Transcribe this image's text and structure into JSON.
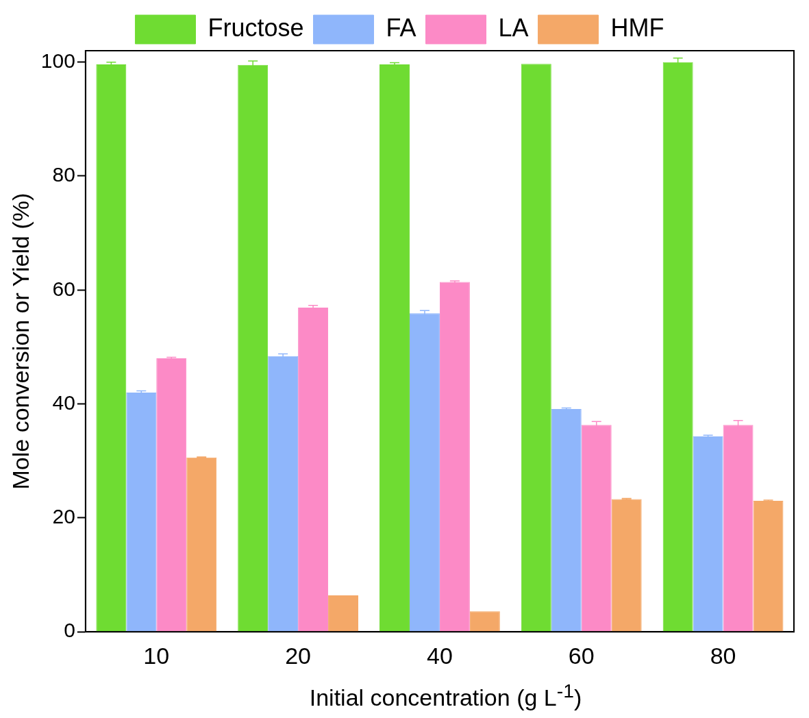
{
  "chart_data": {
    "type": "bar",
    "xlabel": "Initial concentration (g L$^{-1}$)",
    "ylabel": "Mole conversion or Yield (%)",
    "categories": [
      "10",
      "20",
      "40",
      "60",
      "80"
    ],
    "series": [
      {
        "name": "Fructose",
        "color": "#6fdc32",
        "values": [
          99.6,
          99.5,
          99.6,
          99.7,
          100.0
        ],
        "errors": [
          0.4,
          0.7,
          0.3,
          null,
          0.7
        ]
      },
      {
        "name": "FA",
        "color": "#8fb6fb",
        "values": [
          42.0,
          48.4,
          55.9,
          39.1,
          34.3
        ],
        "errors": [
          0.3,
          0.4,
          0.5,
          0.2,
          0.2
        ]
      },
      {
        "name": "LA",
        "color": "#fc8ac6",
        "values": [
          48.0,
          56.9,
          61.4,
          36.3,
          36.3
        ],
        "errors": [
          0.2,
          0.4,
          0.2,
          0.6,
          0.8
        ]
      },
      {
        "name": "HMF",
        "color": "#f4a868",
        "values": [
          30.6,
          6.4,
          3.6,
          23.3,
          23.0
        ],
        "errors": [
          0.1,
          null,
          null,
          0.1,
          0.1
        ]
      }
    ],
    "ylim": [
      0,
      102
    ],
    "yticks": [
      0,
      20,
      40,
      60,
      80,
      100
    ],
    "grid": false,
    "legend": "top"
  }
}
